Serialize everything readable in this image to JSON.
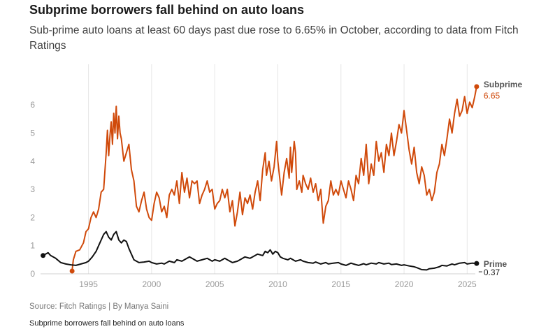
{
  "header": {
    "title": "Subprime borrowers fall behind on auto loans",
    "subtitle": "Sub-prime auto loans at least 60 days past due rose to 6.65% in October, according to data from Fitch Ratings"
  },
  "footer": {
    "source": "Source: Fitch Ratings | By Manya Saini",
    "caption": "Subprime borrowers fall behind on auto loans"
  },
  "colors": {
    "subprime": "#d04a0b",
    "prime": "#111111",
    "grid": "#e6e6e6",
    "tick": "#9a9a9a"
  },
  "chart_data": {
    "type": "line",
    "title": "Subprime borrowers fall behind on auto loans",
    "xlabel": "",
    "ylabel": "",
    "xlim": [
      1991.2,
      2026.2
    ],
    "ylim": [
      0,
      6.7
    ],
    "grid": "vertical gridlines at 5-year ticks",
    "x_ticks": [
      1995,
      2000,
      2005,
      2010,
      2015,
      2020,
      2025
    ],
    "y_ticks": [
      0,
      1,
      2,
      3,
      4,
      5,
      6
    ],
    "series": [
      {
        "name": "Subprime",
        "end_label": "6.65",
        "points": [
          [
            1993.7,
            0.1
          ],
          [
            1993.8,
            0.5
          ],
          [
            1994.0,
            0.8
          ],
          [
            1994.3,
            0.85
          ],
          [
            1994.6,
            1.1
          ],
          [
            1994.8,
            1.5
          ],
          [
            1995.0,
            1.6
          ],
          [
            1995.2,
            2.0
          ],
          [
            1995.4,
            2.2
          ],
          [
            1995.6,
            2.0
          ],
          [
            1995.8,
            2.3
          ],
          [
            1996.0,
            2.9
          ],
          [
            1996.2,
            3.0
          ],
          [
            1996.4,
            4.3
          ],
          [
            1996.5,
            5.1
          ],
          [
            1996.6,
            4.2
          ],
          [
            1996.7,
            4.9
          ],
          [
            1996.8,
            5.4
          ],
          [
            1996.9,
            4.6
          ],
          [
            1997.0,
            5.7
          ],
          [
            1997.1,
            5.0
          ],
          [
            1997.2,
            5.95
          ],
          [
            1997.3,
            4.8
          ],
          [
            1997.4,
            5.6
          ],
          [
            1997.5,
            5.0
          ],
          [
            1997.6,
            4.8
          ],
          [
            1997.8,
            4.0
          ],
          [
            1998.0,
            4.3
          ],
          [
            1998.2,
            4.6
          ],
          [
            1998.4,
            3.7
          ],
          [
            1998.6,
            3.3
          ],
          [
            1998.8,
            2.4
          ],
          [
            1999.0,
            2.2
          ],
          [
            1999.2,
            2.6
          ],
          [
            1999.4,
            2.9
          ],
          [
            1999.6,
            2.3
          ],
          [
            1999.8,
            2.0
          ],
          [
            2000.0,
            1.9
          ],
          [
            2000.2,
            2.5
          ],
          [
            2000.4,
            2.9
          ],
          [
            2000.6,
            2.7
          ],
          [
            2000.8,
            2.2
          ],
          [
            2001.0,
            2.4
          ],
          [
            2001.2,
            2.0
          ],
          [
            2001.4,
            2.8
          ],
          [
            2001.6,
            3.0
          ],
          [
            2001.8,
            2.8
          ],
          [
            2002.0,
            3.3
          ],
          [
            2002.2,
            2.5
          ],
          [
            2002.4,
            3.6
          ],
          [
            2002.6,
            2.9
          ],
          [
            2002.8,
            3.4
          ],
          [
            2003.0,
            2.7
          ],
          [
            2003.2,
            3.3
          ],
          [
            2003.4,
            3.2
          ],
          [
            2003.6,
            3.3
          ],
          [
            2003.8,
            2.5
          ],
          [
            2004.0,
            2.8
          ],
          [
            2004.2,
            3.0
          ],
          [
            2004.4,
            3.3
          ],
          [
            2004.6,
            2.9
          ],
          [
            2004.8,
            3.0
          ],
          [
            2005.0,
            2.3
          ],
          [
            2005.2,
            2.5
          ],
          [
            2005.4,
            2.6
          ],
          [
            2005.6,
            3.0
          ],
          [
            2005.8,
            2.7
          ],
          [
            2006.0,
            3.0
          ],
          [
            2006.2,
            2.2
          ],
          [
            2006.4,
            2.6
          ],
          [
            2006.6,
            1.7
          ],
          [
            2006.8,
            2.2
          ],
          [
            2007.0,
            2.9
          ],
          [
            2007.2,
            2.1
          ],
          [
            2007.4,
            2.7
          ],
          [
            2007.6,
            2.5
          ],
          [
            2007.8,
            2.8
          ],
          [
            2008.0,
            2.3
          ],
          [
            2008.2,
            2.9
          ],
          [
            2008.4,
            3.3
          ],
          [
            2008.6,
            2.6
          ],
          [
            2008.8,
            3.7
          ],
          [
            2009.0,
            4.3
          ],
          [
            2009.1,
            3.5
          ],
          [
            2009.3,
            4.0
          ],
          [
            2009.5,
            3.3
          ],
          [
            2009.7,
            3.8
          ],
          [
            2009.9,
            4.7
          ],
          [
            2010.0,
            4.0
          ],
          [
            2010.1,
            3.6
          ],
          [
            2010.3,
            2.8
          ],
          [
            2010.5,
            3.6
          ],
          [
            2010.7,
            4.1
          ],
          [
            2010.9,
            3.4
          ],
          [
            2011.0,
            4.5
          ],
          [
            2011.1,
            3.6
          ],
          [
            2011.3,
            4.7
          ],
          [
            2011.4,
            4.3
          ],
          [
            2011.5,
            3.0
          ],
          [
            2011.7,
            3.3
          ],
          [
            2011.9,
            2.9
          ],
          [
            2012.0,
            3.5
          ],
          [
            2012.2,
            3.2
          ],
          [
            2012.4,
            3.0
          ],
          [
            2012.6,
            3.4
          ],
          [
            2012.8,
            2.9
          ],
          [
            2013.0,
            3.2
          ],
          [
            2013.2,
            2.6
          ],
          [
            2013.4,
            3.0
          ],
          [
            2013.6,
            1.8
          ],
          [
            2013.8,
            2.4
          ],
          [
            2014.0,
            2.6
          ],
          [
            2014.2,
            3.3
          ],
          [
            2014.4,
            2.8
          ],
          [
            2014.6,
            3.0
          ],
          [
            2014.8,
            2.8
          ],
          [
            2015.0,
            3.3
          ],
          [
            2015.2,
            3.0
          ],
          [
            2015.4,
            2.7
          ],
          [
            2015.6,
            3.3
          ],
          [
            2015.8,
            3.0
          ],
          [
            2016.0,
            2.6
          ],
          [
            2016.2,
            3.5
          ],
          [
            2016.4,
            3.2
          ],
          [
            2016.6,
            4.1
          ],
          [
            2016.8,
            3.5
          ],
          [
            2017.0,
            4.6
          ],
          [
            2017.2,
            3.2
          ],
          [
            2017.4,
            3.9
          ],
          [
            2017.6,
            3.5
          ],
          [
            2017.8,
            4.7
          ],
          [
            2018.0,
            4.0
          ],
          [
            2018.2,
            4.3
          ],
          [
            2018.4,
            3.6
          ],
          [
            2018.6,
            4.6
          ],
          [
            2018.8,
            4.2
          ],
          [
            2019.0,
            5.0
          ],
          [
            2019.2,
            4.2
          ],
          [
            2019.4,
            4.7
          ],
          [
            2019.6,
            5.3
          ],
          [
            2019.8,
            5.0
          ],
          [
            2020.0,
            5.8
          ],
          [
            2020.2,
            5.1
          ],
          [
            2020.4,
            4.4
          ],
          [
            2020.6,
            3.9
          ],
          [
            2020.8,
            4.5
          ],
          [
            2021.0,
            3.6
          ],
          [
            2021.2,
            3.2
          ],
          [
            2021.4,
            3.8
          ],
          [
            2021.6,
            3.5
          ],
          [
            2021.8,
            2.8
          ],
          [
            2022.0,
            3.0
          ],
          [
            2022.2,
            2.6
          ],
          [
            2022.4,
            2.9
          ],
          [
            2022.6,
            3.6
          ],
          [
            2022.8,
            3.9
          ],
          [
            2023.0,
            4.6
          ],
          [
            2023.2,
            4.2
          ],
          [
            2023.4,
            4.8
          ],
          [
            2023.6,
            5.5
          ],
          [
            2023.8,
            5.0
          ],
          [
            2024.0,
            5.7
          ],
          [
            2024.2,
            6.2
          ],
          [
            2024.4,
            5.6
          ],
          [
            2024.6,
            5.8
          ],
          [
            2024.8,
            6.3
          ],
          [
            2025.0,
            5.7
          ],
          [
            2025.2,
            6.1
          ],
          [
            2025.4,
            5.9
          ],
          [
            2025.6,
            6.3
          ],
          [
            2025.75,
            6.65
          ]
        ]
      },
      {
        "name": "Prime",
        "end_label": "0.37",
        "points": [
          [
            1991.4,
            0.65
          ],
          [
            1991.8,
            0.75
          ],
          [
            1992.0,
            0.65
          ],
          [
            1992.4,
            0.55
          ],
          [
            1992.8,
            0.4
          ],
          [
            1993.2,
            0.35
          ],
          [
            1993.6,
            0.32
          ],
          [
            1994.0,
            0.3
          ],
          [
            1994.4,
            0.35
          ],
          [
            1994.8,
            0.4
          ],
          [
            1995.0,
            0.45
          ],
          [
            1995.3,
            0.6
          ],
          [
            1995.6,
            0.8
          ],
          [
            1995.8,
            1.0
          ],
          [
            1996.0,
            1.2
          ],
          [
            1996.2,
            1.4
          ],
          [
            1996.4,
            1.5
          ],
          [
            1996.6,
            1.3
          ],
          [
            1996.8,
            1.2
          ],
          [
            1997.0,
            1.4
          ],
          [
            1997.2,
            1.5
          ],
          [
            1997.4,
            1.2
          ],
          [
            1997.6,
            1.1
          ],
          [
            1997.8,
            1.2
          ],
          [
            1998.0,
            1.15
          ],
          [
            1998.2,
            0.9
          ],
          [
            1998.4,
            0.7
          ],
          [
            1998.6,
            0.5
          ],
          [
            1998.8,
            0.45
          ],
          [
            1999.0,
            0.4
          ],
          [
            1999.4,
            0.42
          ],
          [
            1999.8,
            0.45
          ],
          [
            2000.0,
            0.4
          ],
          [
            2000.4,
            0.35
          ],
          [
            2000.8,
            0.38
          ],
          [
            2001.0,
            0.35
          ],
          [
            2001.4,
            0.45
          ],
          [
            2001.8,
            0.4
          ],
          [
            2002.0,
            0.5
          ],
          [
            2002.4,
            0.45
          ],
          [
            2002.8,
            0.55
          ],
          [
            2003.0,
            0.6
          ],
          [
            2003.2,
            0.55
          ],
          [
            2003.6,
            0.45
          ],
          [
            2004.0,
            0.5
          ],
          [
            2004.4,
            0.55
          ],
          [
            2004.8,
            0.45
          ],
          [
            2005.0,
            0.5
          ],
          [
            2005.4,
            0.45
          ],
          [
            2005.8,
            0.55
          ],
          [
            2006.0,
            0.5
          ],
          [
            2006.4,
            0.4
          ],
          [
            2006.8,
            0.45
          ],
          [
            2007.0,
            0.5
          ],
          [
            2007.4,
            0.6
          ],
          [
            2007.8,
            0.55
          ],
          [
            2008.0,
            0.6
          ],
          [
            2008.4,
            0.7
          ],
          [
            2008.8,
            0.65
          ],
          [
            2009.0,
            0.8
          ],
          [
            2009.2,
            0.75
          ],
          [
            2009.4,
            0.85
          ],
          [
            2009.6,
            0.7
          ],
          [
            2009.8,
            0.8
          ],
          [
            2010.0,
            0.75
          ],
          [
            2010.2,
            0.6
          ],
          [
            2010.4,
            0.55
          ],
          [
            2010.8,
            0.5
          ],
          [
            2011.0,
            0.55
          ],
          [
            2011.4,
            0.45
          ],
          [
            2011.8,
            0.5
          ],
          [
            2012.0,
            0.45
          ],
          [
            2012.4,
            0.4
          ],
          [
            2012.8,
            0.38
          ],
          [
            2013.0,
            0.42
          ],
          [
            2013.4,
            0.35
          ],
          [
            2013.8,
            0.4
          ],
          [
            2014.0,
            0.35
          ],
          [
            2014.4,
            0.38
          ],
          [
            2014.8,
            0.4
          ],
          [
            2015.0,
            0.35
          ],
          [
            2015.4,
            0.3
          ],
          [
            2015.8,
            0.38
          ],
          [
            2016.0,
            0.35
          ],
          [
            2016.4,
            0.3
          ],
          [
            2016.8,
            0.36
          ],
          [
            2017.0,
            0.32
          ],
          [
            2017.4,
            0.38
          ],
          [
            2017.8,
            0.35
          ],
          [
            2018.0,
            0.4
          ],
          [
            2018.4,
            0.35
          ],
          [
            2018.8,
            0.38
          ],
          [
            2019.0,
            0.33
          ],
          [
            2019.4,
            0.35
          ],
          [
            2019.8,
            0.3
          ],
          [
            2020.0,
            0.32
          ],
          [
            2020.4,
            0.28
          ],
          [
            2020.8,
            0.25
          ],
          [
            2021.0,
            0.22
          ],
          [
            2021.4,
            0.15
          ],
          [
            2021.8,
            0.14
          ],
          [
            2022.0,
            0.18
          ],
          [
            2022.4,
            0.2
          ],
          [
            2022.8,
            0.25
          ],
          [
            2023.0,
            0.3
          ],
          [
            2023.4,
            0.28
          ],
          [
            2023.8,
            0.35
          ],
          [
            2024.0,
            0.32
          ],
          [
            2024.4,
            0.38
          ],
          [
            2024.8,
            0.4
          ],
          [
            2025.0,
            0.35
          ],
          [
            2025.4,
            0.38
          ],
          [
            2025.75,
            0.37
          ]
        ]
      }
    ]
  }
}
